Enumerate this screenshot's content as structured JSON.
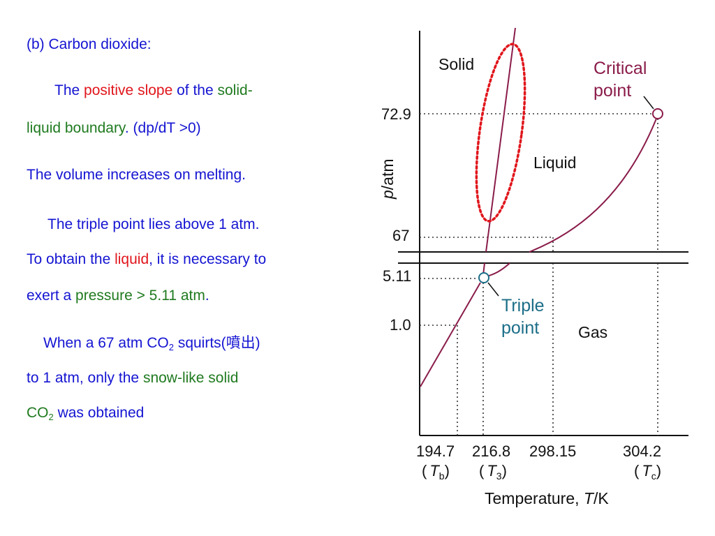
{
  "text": {
    "heading": "(b) Carbon dioxide:",
    "p1": {
      "the": "The ",
      "positive_slope": "positive slope",
      "of_the": " of the ",
      "solid_liquid_line1": "solid-",
      "solid_liquid_line2": "liquid boundary",
      "dpdT": ". (dp/dT >0)"
    },
    "volume_increases": "The volume increases on melting.",
    "p2": {
      "line1": "The triple point lies above 1 atm.",
      "to_obtain": "To obtain the ",
      "liquid": "liquid",
      "necessary": ", it is necessary to",
      "exert": "exert a ",
      "pressure": "pressure > 5.11 atm",
      "period": "."
    },
    "p3": {
      "when": "When a 67 atm CO",
      "sub2": "2",
      "squirts": " squirts(噴出)",
      "to_1_atm": "to 1 atm, only the ",
      "snow_like": "snow-like solid",
      "co": "CO",
      "sub2b": "2",
      "obtained": " was obtained"
    }
  },
  "diagram": {
    "regions": {
      "solid": "Solid",
      "liquid": "Liquid",
      "gas": "Gas"
    },
    "critical_point": {
      "line1": "Critical",
      "line2": "point"
    },
    "triple_point": {
      "line1": "Triple",
      "line2": "point"
    },
    "y_ticks": [
      "72.9",
      "67",
      "5.11",
      "1.0"
    ],
    "x_ticks": [
      "194.7",
      "216.8",
      "298.15",
      "304.2"
    ],
    "x_subs": {
      "b": {
        "open": "(",
        "T": "T",
        "sub": "b",
        "close": ")"
      },
      "three": {
        "open": "(",
        "T": "T",
        "sub": "3",
        "close": ")"
      },
      "c": {
        "open": "(",
        "T": "T",
        "sub": "c",
        "close": ")"
      }
    },
    "y_axis_title": {
      "p": "p",
      "rest": "/atm"
    },
    "x_axis_title": {
      "text": "Temperature, ",
      "T": "T",
      "unit": "/K"
    },
    "colors": {
      "curve": "#8a1c4a",
      "critical": "#8a1c4a",
      "triple": "#1c6e88",
      "ellipse": "#e0161c",
      "text_blue": "#1414d2",
      "text_red": "#e0161c",
      "text_green": "#1f7a1f"
    }
  }
}
